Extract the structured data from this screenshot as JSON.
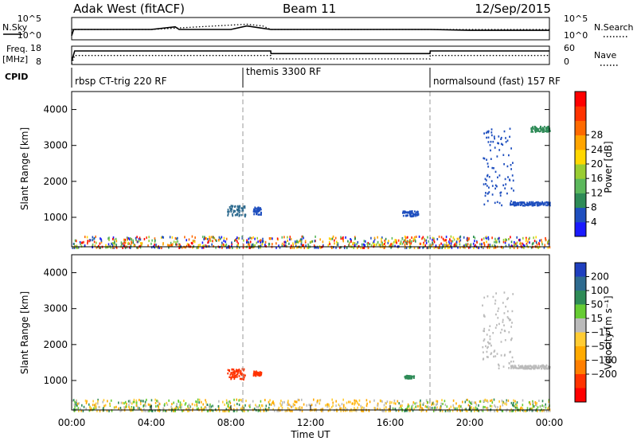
{
  "header": {
    "title": "Adak West (fitACF)",
    "beam": "Beam 11",
    "date": "12/Sep/2015"
  },
  "side_labels": {
    "nsky": "N.Sky",
    "nsearch": "N.Search",
    "freq_line1": "Freq.",
    "freq_line2": "[MHz]",
    "nave": "Nave",
    "cpid": "CPID"
  },
  "chart_data": [
    {
      "type": "line",
      "title": "",
      "panel": "noise",
      "y_ticks_left": [
        "10^5",
        "10^0"
      ],
      "y_ticks_right": [
        "10^5",
        "10^0"
      ],
      "series": [
        {
          "name": "N.Sky",
          "style": "solid",
          "x": [
            0,
            0.1,
            4,
            5.2,
            5.4,
            8,
            8.8,
            9.4,
            10,
            12,
            16,
            18,
            20,
            24
          ],
          "y": [
            0.3,
            1.0,
            1.0,
            1.3,
            1.0,
            1.0,
            1.4,
            1.2,
            1.0,
            1.0,
            1.0,
            1.0,
            0.9,
            0.9
          ]
        },
        {
          "name": "N.Search",
          "style": "dotted",
          "x": [
            0,
            4,
            8.8,
            9.6,
            10,
            18,
            24
          ],
          "y": [
            1.0,
            1.0,
            1.6,
            1.4,
            1.0,
            1.0,
            1.0
          ]
        }
      ]
    },
    {
      "type": "line",
      "title": "",
      "panel": "frequency",
      "y_ticks_left": [
        "18",
        "8"
      ],
      "y_ticks_right": [
        "60",
        "0"
      ],
      "series": [
        {
          "name": "Freq.",
          "style": "solid",
          "x": [
            0,
            0.15,
            10,
            10.01,
            18,
            18.01,
            24
          ],
          "y": [
            8,
            15.6,
            15.6,
            13.6,
            13.6,
            15.6,
            15.6
          ]
        },
        {
          "name": "Nave",
          "style": "dotted",
          "x": [
            0,
            0.15,
            10,
            10.01,
            18,
            18.01,
            24
          ],
          "y": [
            0,
            31,
            31,
            18,
            18,
            31,
            31
          ]
        }
      ]
    },
    {
      "type": "table",
      "panel": "cpid",
      "segments": [
        {
          "label": "rbsp CT-trig 220 RF",
          "start": 0,
          "end": 8.6
        },
        {
          "label": "themis 3300 RF",
          "start": 8.6,
          "end": 18
        },
        {
          "label": "normalsound (fast) 157 RF",
          "start": 18,
          "end": 24
        }
      ]
    },
    {
      "type": "scatter",
      "panel": "power",
      "ylabel": "Slant Range [km]",
      "ylim": [
        180,
        4500
      ],
      "y_ticks": [
        "1000",
        "2000",
        "3000",
        "4000"
      ],
      "colorbar_label": "Power [dB]",
      "colorbar_ticks": [
        "4",
        "8",
        "12",
        "16",
        "20",
        "24",
        "28"
      ],
      "colorbar_colors": [
        "#1a1aff",
        "#1f4fbf",
        "#2e8b57",
        "#5cb85c",
        "#9acd32",
        "#ffd700",
        "#ffa500",
        "#ff6a00",
        "#ff3300",
        "#ff0000"
      ],
      "clusters": [
        {
          "x0": 7.8,
          "x1": 8.7,
          "y0": 1050,
          "y1": 1350,
          "color": "#2e6b8f"
        },
        {
          "x0": 9.1,
          "x1": 9.5,
          "y0": 1100,
          "y1": 1300,
          "color": "#1f4fbf"
        },
        {
          "x0": 16.6,
          "x1": 17.4,
          "y0": 1050,
          "y1": 1200,
          "color": "#1f4fbf"
        },
        {
          "x0": 20.6,
          "x1": 22.2,
          "y0": 1350,
          "y1": 3500,
          "color": "#1f4fbf"
        },
        {
          "x0": 22.0,
          "x1": 24.0,
          "y0": 1350,
          "y1": 1450,
          "color": "#1f4fbf"
        },
        {
          "x0": 23.0,
          "x1": 24.0,
          "y0": 3400,
          "y1": 3550,
          "color": "#2e8b57"
        }
      ],
      "ground_band": {
        "x0": 0,
        "x1": 24,
        "y0": 180,
        "y1": 500
      }
    },
    {
      "type": "scatter",
      "panel": "velocity",
      "xlabel": "Time UT",
      "ylabel": "Slant Range [km]",
      "ylim": [
        180,
        4500
      ],
      "y_ticks": [
        "1000",
        "2000",
        "3000",
        "4000"
      ],
      "x_ticks": [
        "00:00",
        "04:00",
        "08:00",
        "12:00",
        "16:00",
        "20:00",
        "00:00"
      ],
      "colorbar_label": "Velocity [m s⁻¹]",
      "colorbar_ticks": [
        "200",
        "100",
        "50",
        "15",
        "−15",
        "−50",
        "−100",
        "−200"
      ],
      "colorbar_colors": [
        "#1f3fbf",
        "#2e6b8f",
        "#2e8b57",
        "#66cc33",
        "#bbbbbb",
        "#ffcc33",
        "#ffaa00",
        "#ff7f00",
        "#ff3300",
        "#ff0000"
      ],
      "clusters": [
        {
          "x0": 7.8,
          "x1": 8.7,
          "y0": 1050,
          "y1": 1350,
          "color": "#ff3300"
        },
        {
          "x0": 9.1,
          "x1": 9.5,
          "y0": 1150,
          "y1": 1280,
          "color": "#ff3300"
        },
        {
          "x0": 16.7,
          "x1": 17.2,
          "y0": 1080,
          "y1": 1160,
          "color": "#2e8b57"
        },
        {
          "x0": 20.6,
          "x1": 22.2,
          "y0": 1350,
          "y1": 3500,
          "color": "#bbbbbb"
        },
        {
          "x0": 22.0,
          "x1": 24.0,
          "y0": 1350,
          "y1": 1450,
          "color": "#bbbbbb"
        }
      ],
      "ground_band": {
        "x0": 0,
        "x1": 24,
        "y0": 180,
        "y1": 500
      }
    }
  ]
}
